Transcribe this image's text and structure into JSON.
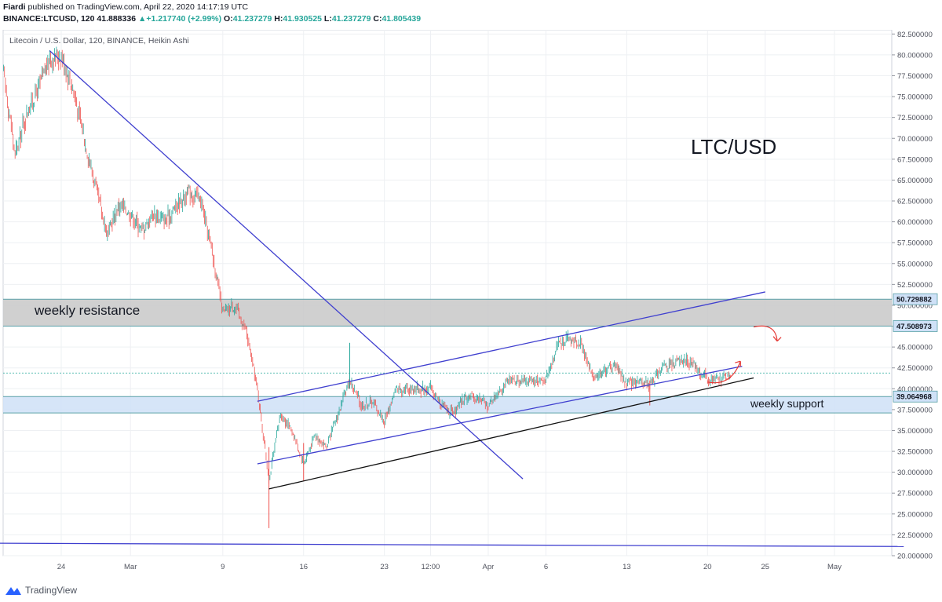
{
  "header": {
    "author": "Fiardi",
    "published": "published on TradingView.com, April 22, 2020 14:17:19 UTC",
    "symbol": "BINANCE:LTCUSD, 120",
    "last": "41.888336",
    "change": "+1.217740 (+2.99%)",
    "open": "41.237279",
    "high": "41.930525",
    "low": "41.237279",
    "close": "41.805439"
  },
  "footer": {
    "brand": "TradingView"
  },
  "colors": {
    "up": "#26a69a",
    "down": "#ef5350",
    "trendline": "#3f3fcf",
    "support_line": "#111111",
    "resistance_zone": "#c8c8c8",
    "support_zone": "#cfe1f7",
    "arrow": "#e53935"
  },
  "icons": {
    "logo": "tradingview-logo-icon"
  },
  "chart_data": {
    "type": "candlestick",
    "title": "Litecoin / U.S. Dollar, 120, BINANCE, Heikin Ashi",
    "overlay_text": "LTC/USD",
    "ylim": [
      20,
      83
    ],
    "y_ticks": [
      "82.500000",
      "80.000000",
      "77.500000",
      "75.000000",
      "72.500000",
      "70.000000",
      "67.500000",
      "65.000000",
      "62.500000",
      "60.000000",
      "57.500000",
      "55.000000",
      "52.500000",
      "50.000000",
      "47.500000",
      "45.000000",
      "42.500000",
      "40.000000",
      "37.500000",
      "35.000000",
      "32.500000",
      "30.000000",
      "27.500000",
      "25.000000",
      "22.500000",
      "20.000000"
    ],
    "x_ticks": [
      "24",
      "Mar",
      "9",
      "16",
      "23",
      "12:00",
      "Apr",
      "6",
      "13",
      "20",
      "25",
      "May"
    ],
    "price_labels": [
      "50.729882",
      "47.508973",
      "39.064968"
    ],
    "zones": [
      {
        "label": "weekly resistance",
        "y_from": 47.508973,
        "y_to": 50.729882
      },
      {
        "label": "weekly support",
        "y_from": 37.1,
        "y_to": 39.064968
      }
    ],
    "price_path": [
      [
        "Feb 19",
        78
      ],
      [
        "Feb 20",
        68
      ],
      [
        "Feb 21",
        73
      ],
      [
        "Feb 22",
        76
      ],
      [
        "Feb 23",
        79.5
      ],
      [
        "Feb 24",
        80
      ],
      [
        "Feb 25",
        76
      ],
      [
        "Feb 26",
        70
      ],
      [
        "Feb 27",
        64
      ],
      [
        "Feb 28",
        58.5
      ],
      [
        "Feb 29",
        62
      ],
      [
        "Mar 1",
        61
      ],
      [
        "Mar 2",
        59
      ],
      [
        "Mar 3",
        61
      ],
      [
        "Mar 4",
        60
      ],
      [
        "Mar 5",
        62
      ],
      [
        "Mar 6",
        63.5
      ],
      [
        "Mar 7",
        63
      ],
      [
        "Mar 8",
        57
      ],
      [
        "Mar 9",
        49
      ],
      [
        "Mar 10",
        50
      ],
      [
        "Mar 11",
        47
      ],
      [
        "Mar 12",
        40
      ],
      [
        "Mar 13",
        29
      ],
      [
        "Mar 14",
        37
      ],
      [
        "Mar 15",
        35
      ],
      [
        "Mar 16",
        31
      ],
      [
        "Mar 17",
        34.5
      ],
      [
        "Mar 18",
        33
      ],
      [
        "Mar 19",
        37
      ],
      [
        "Mar 20",
        41
      ],
      [
        "Mar 21",
        38
      ],
      [
        "Mar 22",
        38.5
      ],
      [
        "Mar 23",
        36
      ],
      [
        "Mar 24",
        40
      ],
      [
        "Mar 25",
        40
      ],
      [
        "Mar 26",
        40
      ],
      [
        "Mar 27",
        40
      ],
      [
        "Mar 28",
        38
      ],
      [
        "Mar 29",
        37
      ],
      [
        "Mar 30",
        39
      ],
      [
        "Mar 31",
        39
      ],
      [
        "Apr 1",
        38
      ],
      [
        "Apr 2",
        40
      ],
      [
        "Apr 3",
        41
      ],
      [
        "Apr 4",
        41
      ],
      [
        "Apr 5",
        41
      ],
      [
        "Apr 6",
        41
      ],
      [
        "Apr 7",
        45.5
      ],
      [
        "Apr 8",
        46
      ],
      [
        "Apr 9",
        45.5
      ],
      [
        "Apr 10",
        41.5
      ],
      [
        "Apr 11",
        42
      ],
      [
        "Apr 12",
        43
      ],
      [
        "Apr 13",
        40.5
      ],
      [
        "Apr 14",
        41
      ],
      [
        "Apr 15",
        40.5
      ],
      [
        "Apr 16",
        42.5
      ],
      [
        "Apr 17",
        43
      ],
      [
        "Apr 18",
        43.5
      ],
      [
        "Apr 19",
        42.5
      ],
      [
        "Apr 20",
        41
      ],
      [
        "Apr 21",
        41
      ],
      [
        "Apr 22",
        41.8
      ]
    ],
    "trendlines": [
      {
        "name": "descending",
        "from": [
          "Feb 23",
          80.5
        ],
        "to": [
          "Apr 4",
          29.2
        ]
      },
      {
        "name": "channel-upper",
        "from": [
          "Mar 12",
          38.5
        ],
        "to": [
          "Apr 25",
          51.6
        ]
      },
      {
        "name": "channel-lower",
        "from": [
          "Mar 12",
          31.0
        ],
        "to": [
          "Apr 23",
          42.7
        ]
      },
      {
        "name": "support",
        "from": [
          "Mar 13",
          28.0
        ],
        "to": [
          "Apr 24",
          41.3
        ]
      },
      {
        "name": "floor",
        "from": [
          "Feb 17",
          21.5
        ],
        "to": [
          "May 7",
          21.1
        ]
      }
    ]
  }
}
